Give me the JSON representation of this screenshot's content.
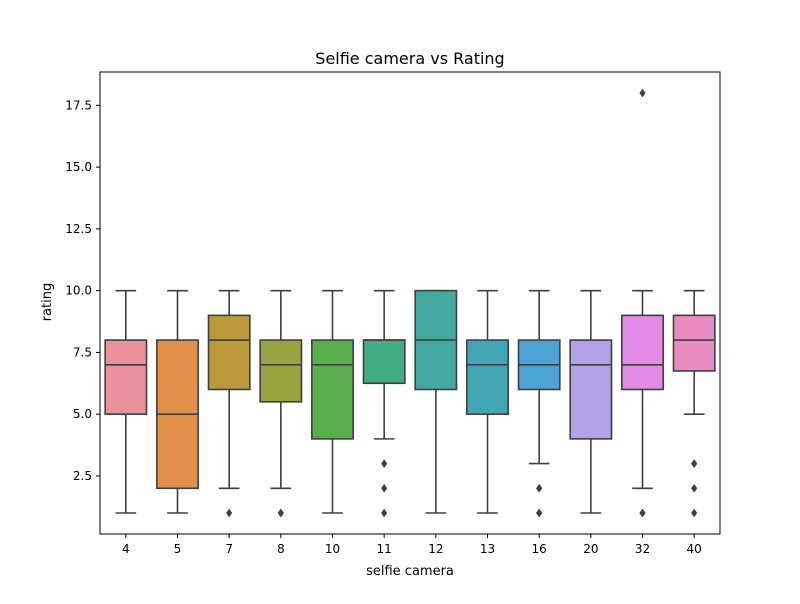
{
  "chart_data": {
    "type": "box",
    "title": "Selfie camera vs Rating",
    "xlabel": "selfie camera",
    "ylabel": "rating",
    "ylim": [
      0.15,
      18.85
    ],
    "yticks": [
      2.5,
      5.0,
      7.5,
      10.0,
      12.5,
      15.0,
      17.5
    ],
    "ytick_labels": [
      "2.5",
      "5.0",
      "7.5",
      "10.0",
      "12.5",
      "15.0",
      "17.5"
    ],
    "grid": false,
    "categories": [
      "4",
      "5",
      "7",
      "8",
      "10",
      "11",
      "12",
      "13",
      "16",
      "20",
      "32",
      "40"
    ],
    "boxes": [
      {
        "category": "4",
        "color": "#e9919c",
        "whisker_low": 1,
        "q1": 5,
        "median": 7,
        "q3": 8,
        "whisker_high": 10,
        "outliers": []
      },
      {
        "category": "5",
        "color": "#e38f4c",
        "whisker_low": 1,
        "q1": 2,
        "median": 5,
        "q3": 8,
        "whisker_high": 10,
        "outliers": []
      },
      {
        "category": "7",
        "color": "#bc9a3c",
        "whisker_low": 2,
        "q1": 6,
        "median": 8,
        "q3": 9,
        "whisker_high": 10,
        "outliers": [
          1
        ]
      },
      {
        "category": "8",
        "color": "#98a440",
        "whisker_low": 2,
        "q1": 5.5,
        "median": 7,
        "q3": 8,
        "whisker_high": 10,
        "outliers": [
          1,
          1
        ]
      },
      {
        "category": "10",
        "color": "#5aae4b",
        "whisker_low": 1,
        "q1": 4,
        "median": 7,
        "q3": 8,
        "whisker_high": 10,
        "outliers": []
      },
      {
        "category": "11",
        "color": "#42ac84",
        "whisker_low": 4,
        "q1": 6.25,
        "median": 8,
        "q3": 8,
        "whisker_high": 10,
        "outliers": [
          3,
          2,
          1
        ]
      },
      {
        "category": "12",
        "color": "#42a99e",
        "whisker_low": 1,
        "q1": 6,
        "median": 8,
        "q3": 10,
        "whisker_high": 10,
        "outliers": []
      },
      {
        "category": "13",
        "color": "#42a6b4",
        "whisker_low": 1,
        "q1": 5,
        "median": 7,
        "q3": 8,
        "whisker_high": 10,
        "outliers": []
      },
      {
        "category": "16",
        "color": "#4ba3d8",
        "whisker_low": 3,
        "q1": 6,
        "median": 7,
        "q3": 8,
        "whisker_high": 10,
        "outliers": [
          2,
          2,
          1,
          1
        ]
      },
      {
        "category": "20",
        "color": "#b3a2e8",
        "whisker_low": 1,
        "q1": 4,
        "median": 7,
        "q3": 8,
        "whisker_high": 10,
        "outliers": []
      },
      {
        "category": "32",
        "color": "#e28ae6",
        "whisker_low": 2,
        "q1": 6,
        "median": 7,
        "q3": 9,
        "whisker_high": 10,
        "outliers": [
          18,
          1,
          1
        ]
      },
      {
        "category": "40",
        "color": "#e88cc2",
        "whisker_low": 5,
        "q1": 6.75,
        "median": 8,
        "q3": 9,
        "whisker_high": 10,
        "outliers": [
          3,
          3,
          2,
          1
        ]
      }
    ]
  }
}
